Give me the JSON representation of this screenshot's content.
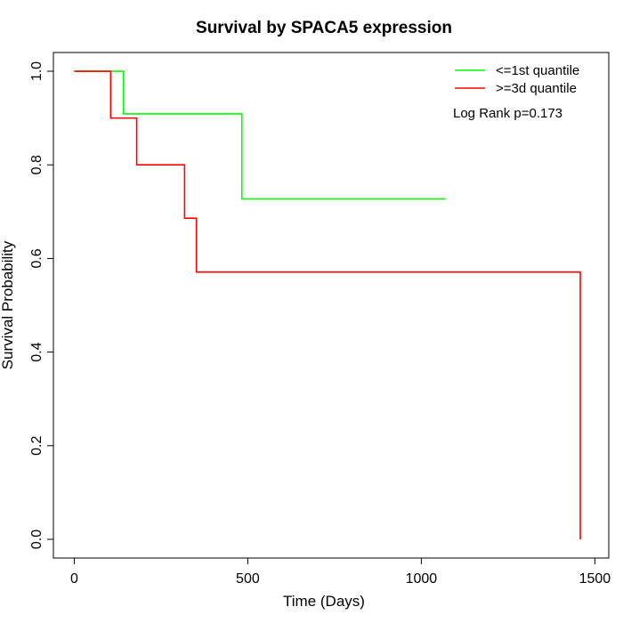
{
  "chart_data": {
    "type": "line",
    "subtype": "kaplan-meier-step",
    "title": "Survival by SPACA5 expression",
    "xlabel": "Time (Days)",
    "ylabel": "Survival Probability",
    "xlim": [
      -60,
      1540
    ],
    "ylim": [
      -0.04,
      1.04
    ],
    "xticks": [
      0,
      500,
      1000,
      1500
    ],
    "yticks": [
      0.0,
      0.2,
      0.4,
      0.6,
      0.8,
      1.0
    ],
    "xtick_labels": [
      "0",
      "500",
      "1000",
      "1500"
    ],
    "ytick_labels": [
      "0.0",
      "0.2",
      "0.4",
      "0.6",
      "0.8",
      "1.0"
    ],
    "legend_position": "top-right",
    "annotation": "Log Rank p=0.173",
    "series": [
      {
        "name": "<=1st quantile",
        "color": "#00ff00",
        "x": [
          0,
          142,
          483,
          1070
        ],
        "y": [
          1.0,
          0.909,
          0.727,
          0.727
        ]
      },
      {
        "name": ">=3d quantile",
        "color": "#ff0000",
        "x": [
          0,
          105,
          180,
          318,
          352,
          1458
        ],
        "y": [
          1.0,
          0.9,
          0.8,
          0.686,
          0.571,
          0.0
        ]
      }
    ]
  }
}
